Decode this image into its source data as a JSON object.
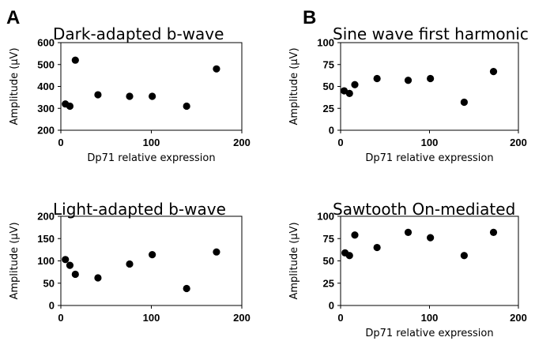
{
  "panel_letters": [
    "A",
    "B"
  ],
  "chart_data": [
    {
      "type": "scatter",
      "title": "Dark-adapted b-wave",
      "xlabel": "Dp71 relative expression",
      "ylabel": "Amplitude (μV)",
      "xlim": [
        0,
        200
      ],
      "ylim": [
        200,
        600
      ],
      "xticks": [
        "0",
        "100",
        "200"
      ],
      "yticks": [
        "200",
        "300",
        "400",
        "500",
        "600"
      ],
      "grid": false,
      "series": [
        {
          "x": [
            5,
            10,
            16,
            41,
            76,
            101,
            139,
            172
          ],
          "y": [
            320,
            310,
            520,
            362,
            355,
            355,
            310,
            480
          ]
        }
      ]
    },
    {
      "type": "scatter",
      "title": "Sine wave first harmonic",
      "xlabel": "Dp71 relative expression",
      "ylabel": "Amplitude (μV)",
      "xlim": [
        0,
        200
      ],
      "ylim": [
        0,
        100
      ],
      "xticks": [
        "0",
        "100",
        "200"
      ],
      "yticks": [
        "0",
        "25",
        "50",
        "75",
        "100"
      ],
      "grid": false,
      "series": [
        {
          "x": [
            4,
            10,
            16,
            41,
            76,
            101,
            139,
            172
          ],
          "y": [
            45,
            42,
            52,
            59,
            57,
            59,
            32,
            67
          ]
        }
      ]
    },
    {
      "type": "scatter",
      "title": "Light-adapted b-wave",
      "xlabel": "",
      "ylabel": "Amplitude (μV)",
      "xlim": [
        0,
        200
      ],
      "ylim": [
        0,
        200
      ],
      "xticks": [
        "0",
        "100",
        "200"
      ],
      "yticks": [
        "0",
        "50",
        "100",
        "150",
        "200"
      ],
      "grid": false,
      "series": [
        {
          "x": [
            5,
            10,
            16,
            41,
            76,
            101,
            139,
            172
          ],
          "y": [
            103,
            90,
            70,
            62,
            93,
            114,
            38,
            120
          ]
        }
      ]
    },
    {
      "type": "scatter",
      "title": "Sawtooth On-mediated",
      "xlabel": "Dp71 relative expression",
      "ylabel": "Amplitude (μV)",
      "xlim": [
        0,
        200
      ],
      "ylim": [
        0,
        100
      ],
      "xticks": [
        "0",
        "100",
        "200"
      ],
      "yticks": [
        "0",
        "25",
        "50",
        "75",
        "100"
      ],
      "grid": false,
      "series": [
        {
          "x": [
            5,
            10,
            16,
            41,
            76,
            101,
            139,
            172
          ],
          "y": [
            59,
            56,
            79,
            65,
            82,
            76,
            56,
            82
          ]
        }
      ]
    }
  ]
}
